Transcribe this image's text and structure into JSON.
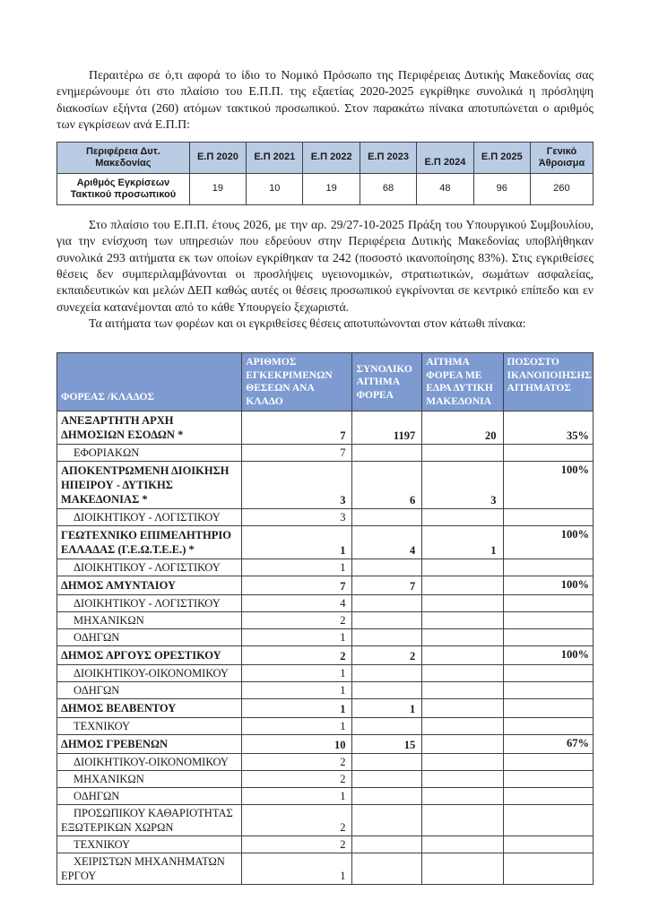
{
  "colors": {
    "text_color": "#1a1a1a",
    "table1_header_bg": "#b9cce4",
    "table2_header_bg": "#7d9ad1",
    "table2_header_text": "#ffffff",
    "border_color": "#3f3f3f",
    "page_bg": "#ffffff"
  },
  "paragraphs": {
    "p1": "Περαιτέρω σε ό,τι αφορά το ίδιο το Νομικό Πρόσωπο της Περιφέρειας Δυτικής Μακεδονίας σας ενημερώνουμε ότι στο πλαίσιο του Ε.Π.Π. της εξαετίας 2020-2025 εγκρίθηκε συνολικά η πρόσληψη διακοσίων εξήντα (260) ατόμων τακτικού προσωπικού. Στον παρακάτω πίνακα αποτυπώνεται ο αριθμός των εγκρίσεων ανά Ε.Π.Π:",
    "p2": "Στο πλαίσιο του Ε.Π.Π. έτους 2026, με την αρ. 29/27-10-2025 Πράξη του Υπουργικού Συμβουλίου, για την ενίσχυση των υπηρεσιών που εδρεύουν στην Περιφέρεια Δυτικής Μακεδονίας υποβλήθηκαν συνολικά 293 αιτήματα εκ των οποίων εγκρίθηκαν τα 242 (ποσοστό ικανοποίησης 83%). Στις εγκριθείσες θέσεις δεν συμπεριλαμβάνονται οι προσλήψεις υγειονομικών, στρατιωτικών, σωμάτων ασφαλείας, εκπαιδευτικών και μελών ΔΕΠ καθώς αυτές οι θέσεις προσωπικού εγκρίνονται σε κεντρικό επίπεδο και εν συνεχεία κατανέμονται από το κάθε Υπουργείο ξεχωριστά.",
    "p3": "Τα αιτήματα των φορέων και οι εγκριθείσες θέσεις αποτυπώνονται στον κάτωθι πίνακα:"
  },
  "summary_table": {
    "headers": [
      "Περιφέρεια Δυτ. Μακεδονίας",
      "Ε.Π 2020",
      "Ε.Π 2021",
      "Ε.Π 2022",
      "Ε.Π 2023",
      "Ε.Π 2024",
      "Ε.Π 2025",
      "Γενικό Άθροισμα"
    ],
    "row_label": "Αριθμός Εγκρίσεων Τακτικού προσωπικού",
    "values": [
      "19",
      "10",
      "19",
      "68",
      "48",
      "96",
      "260"
    ]
  },
  "requests_table": {
    "headers": [
      "ΦΟΡΕΑΣ /ΚΛΑΔΟΣ",
      "ΑΡΙΘΜΟΣ ΕΓΚΕΚΡΙΜΕΝΩΝ ΘΕΣΕΩΝ ΑΝΑ ΚΛΑΔΟ",
      "ΣΥΝΟΛΙΚΟ ΑΙΤΗΜΑ ΦΟΡΕΑ",
      "ΑΙΤΗΜΑ ΦΟΡΕΑ ΜΕ ΕΔΡΑ ΔΥΤΙΚΗ ΜΑΚΕΔΟΝΙΑ",
      "ΠΟΣΟΣΤΟ ΙΚΑΝΟΠΟΙΗΣΗΣ ΑΙΤΗΜΑΤΟΣ"
    ],
    "rows": [
      {
        "label": "ΑΝΕΞΑΡΤΗΤΗ ΑΡΧΗ ΔΗΜΟΣΙΩΝ ΕΣΟΔΩΝ *",
        "type": "group",
        "approved": "7",
        "total_request": "1197",
        "wm_request": "20",
        "pct": "35%",
        "pct_valign": "bottom"
      },
      {
        "label": "ΕΦΟΡΙΑΚΩΝ",
        "type": "sub",
        "approved": "7"
      },
      {
        "label": "ΑΠΟΚΕΝΤΡΩΜΕΝΗ ΔΙΟΙΚΗΣΗ ΗΠΕΙΡΟΥ - ΔΥΤΙΚΗΣ ΜΑΚΕΔΟΝΙΑΣ *",
        "type": "group",
        "approved": "3",
        "total_request": "6",
        "wm_request": "3",
        "pct": "100%",
        "pct_valign": "top"
      },
      {
        "label": "ΔΙΟΙΚΗΤΙΚΟΥ - ΛΟΓΙΣΤΙΚΟΥ",
        "type": "sub",
        "approved": "3"
      },
      {
        "label": "ΓΕΩΤΕΧΝΙΚΟ ΕΠΙΜΕΛΗΤΗΡΙΟ ΕΛΛΑΔΑΣ (Γ.Ε.Ω.Τ.Ε.Ε.) *",
        "type": "group",
        "approved": "1",
        "total_request": "4",
        "wm_request": "1",
        "pct": "100%",
        "pct_valign": "top"
      },
      {
        "label": "ΔΙΟΙΚΗΤΙΚΟΥ - ΛΟΓΙΣΤΙΚΟΥ",
        "type": "sub",
        "approved": "1"
      },
      {
        "label": "ΔΗΜΟΣ ΑΜΥΝΤΑΙΟΥ",
        "type": "group",
        "approved": "7",
        "total_request": "7",
        "pct": "100%",
        "pct_valign": "top"
      },
      {
        "label": "ΔΙΟΙΚΗΤΙΚΟΥ - ΛΟΓΙΣΤΙΚΟΥ",
        "type": "sub",
        "approved": "4"
      },
      {
        "label": "ΜΗΧΑΝΙΚΩΝ",
        "type": "sub",
        "approved": "2"
      },
      {
        "label": "ΟΔΗΓΩΝ",
        "type": "sub",
        "approved": "1"
      },
      {
        "label": "ΔΗΜΟΣ ΑΡΓΟΥΣ ΟΡΕΣΤΙΚΟΥ",
        "type": "group",
        "approved": "2",
        "total_request": "2",
        "pct": "100%",
        "pct_valign": "top"
      },
      {
        "label": "ΔΙΟΙΚΗΤΙΚΟΥ-ΟΙΚΟΝΟΜΙΚΟΥ",
        "type": "sub",
        "approved": "1"
      },
      {
        "label": "ΟΔΗΓΩΝ",
        "type": "sub",
        "approved": "1"
      },
      {
        "label": "ΔΗΜΟΣ ΒΕΛΒΕΝΤΟΥ",
        "type": "group",
        "approved": "1",
        "total_request": "1"
      },
      {
        "label": "ΤΕΧΝΙΚΟΥ",
        "type": "sub",
        "approved": "1"
      },
      {
        "label": "ΔΗΜΟΣ ΓΡΕΒΕΝΩΝ",
        "type": "group",
        "approved": "10",
        "total_request": "15",
        "pct": "67%",
        "pct_valign": "top"
      },
      {
        "label": "ΔΙΟΙΚΗΤΙΚΟΥ-ΟΙΚΟΝΟΜΙΚΟΥ",
        "type": "sub",
        "approved": "2"
      },
      {
        "label": "ΜΗΧΑΝΙΚΩΝ",
        "type": "sub",
        "approved": "2"
      },
      {
        "label": "ΟΔΗΓΩΝ",
        "type": "sub",
        "approved": "1"
      },
      {
        "label": "ΠΡΟΣΩΠΙΚΟΥ ΚΑΘΑΡΙΟΤΗΤΑΣ ΕΞΩΤΕΡΙΚΩΝ ΧΩΡΩΝ",
        "type": "sub",
        "approved": "2"
      },
      {
        "label": "ΤΕΧΝΙΚΟΥ",
        "type": "sub",
        "approved": "2"
      },
      {
        "label": "ΧΕΙΡΙΣΤΩΝ ΜΗΧΑΝΗΜΑΤΩΝ ΕΡΓΟΥ",
        "type": "sub",
        "approved": "1"
      }
    ]
  }
}
